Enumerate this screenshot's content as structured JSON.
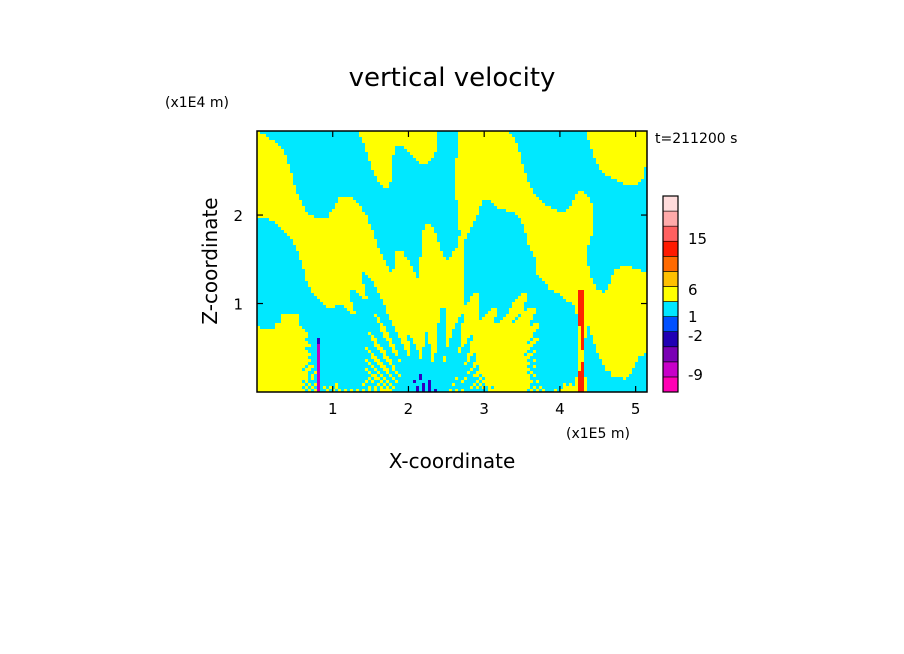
{
  "chart_data": {
    "type": "heatmap",
    "title": "vertical velocity",
    "xlabel": "X-coordinate",
    "ylabel": "Z-coordinate",
    "x_unit": "(x1E5 m)",
    "y_unit": "(x1E4 m)",
    "time_label": "t=211200 s",
    "xlim": [
      0,
      5.15
    ],
    "ylim": [
      0,
      2.95
    ],
    "x_ticks": [
      1,
      2,
      3,
      4,
      5
    ],
    "y_ticks": [
      1,
      2
    ],
    "x_tick_labels": [
      "1",
      "2",
      "3",
      "4",
      "5"
    ],
    "y_tick_labels": [
      "1",
      "2"
    ],
    "grid": false,
    "colorbar": {
      "tick_labels": [
        "15",
        "6",
        "1",
        "-2",
        "-9"
      ],
      "colors": [
        "#ff00b4",
        "#c800c8",
        "#7a00b4",
        "#2000b4",
        "#0050ff",
        "#00e8ff",
        "#ffff00",
        "#ffc000",
        "#ff6a00",
        "#ff1a00",
        "#ff6060",
        "#ffaaaa",
        "#ffdcdc"
      ]
    },
    "field_colors": {
      "negative": "#00e8ff",
      "positive": "#ffff00",
      "strong_up": "#ff2200",
      "strong_down": "#3000c0",
      "extreme_down": "#c000c0"
    },
    "features": [
      {
        "kind": "plume",
        "x": 4.28,
        "z_top": 1.2,
        "sign": "up",
        "note": "strong updraft near x=4.28"
      },
      {
        "kind": "plume",
        "x": 0.82,
        "z_top": 0.62,
        "sign": "down"
      },
      {
        "kind": "wave-fan",
        "x_center": 2.3,
        "x_spread": 1.1
      }
    ]
  }
}
